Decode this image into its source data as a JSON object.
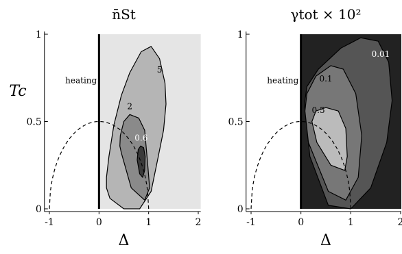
{
  "chart_data": [
    {
      "type": "contour",
      "title": "n̄St",
      "xlabel": "Δ",
      "ylabel": "Tc",
      "xlim": [
        -1.1,
        2.05
      ],
      "ylim": [
        0,
        1.0
      ],
      "xticks": [
        "-1",
        "0",
        "1",
        "2"
      ],
      "yticks": [
        "0",
        "0.5",
        "1"
      ],
      "region_label": "heating",
      "background_color": "#e5e5e5",
      "contours": [
        {
          "level": "5",
          "fill": "#b5b5b5",
          "points": [
            [
              0.15,
              0.12
            ],
            [
              0.22,
              0.06
            ],
            [
              0.5,
              0.0
            ],
            [
              0.82,
              0.0
            ],
            [
              1.05,
              0.1
            ],
            [
              1.18,
              0.28
            ],
            [
              1.3,
              0.45
            ],
            [
              1.35,
              0.6
            ],
            [
              1.33,
              0.72
            ],
            [
              1.22,
              0.86
            ],
            [
              1.05,
              0.93
            ],
            [
              0.85,
              0.9
            ],
            [
              0.62,
              0.78
            ],
            [
              0.45,
              0.65
            ],
            [
              0.3,
              0.48
            ],
            [
              0.2,
              0.3
            ],
            [
              0.15,
              0.18
            ]
          ]
        },
        {
          "level": "2",
          "fill": "#8a8a8a",
          "points": [
            [
              0.45,
              0.32
            ],
            [
              0.65,
              0.12
            ],
            [
              0.92,
              0.05
            ],
            [
              1.02,
              0.12
            ],
            [
              0.98,
              0.26
            ],
            [
              0.92,
              0.45
            ],
            [
              0.8,
              0.52
            ],
            [
              0.62,
              0.54
            ],
            [
              0.5,
              0.5
            ],
            [
              0.43,
              0.42
            ],
            [
              0.42,
              0.36
            ]
          ]
        },
        {
          "level": "0.6",
          "fill": "#3a3a3a",
          "points": [
            [
              0.77,
              0.28
            ],
            [
              0.82,
              0.2
            ],
            [
              0.88,
              0.18
            ],
            [
              0.92,
              0.22
            ],
            [
              0.93,
              0.3
            ],
            [
              0.9,
              0.35
            ],
            [
              0.84,
              0.36
            ],
            [
              0.79,
              0.34
            ]
          ]
        }
      ],
      "contour_labels": [
        {
          "text": "5",
          "x": 1.22,
          "y": 0.78,
          "color": "#000000"
        },
        {
          "text": "2",
          "x": 0.62,
          "y": 0.57,
          "color": "#000000"
        },
        {
          "text": "0.6",
          "x": 0.85,
          "y": 0.39,
          "color": "#ffffff"
        }
      ],
      "dashed_curve": "Tc = 0.5·sqrt(1 − Δ²)",
      "boundary_line_x": 0
    },
    {
      "type": "contour",
      "title": "γtot × 10²",
      "xlabel": "Δ",
      "ylabel": "",
      "xlim": [
        -1.1,
        2.05
      ],
      "ylim": [
        0,
        1.0
      ],
      "xticks": [
        "-1",
        "0",
        "1",
        "2"
      ],
      "yticks": [
        "0",
        "0.5",
        "1"
      ],
      "region_label": "heating",
      "background_color": "#222222",
      "contours": [
        {
          "level": "0.01",
          "fill": "#555555",
          "points": [
            [
              0.07,
              0.6
            ],
            [
              0.18,
              0.3
            ],
            [
              0.55,
              0.02
            ],
            [
              1.0,
              0.0
            ],
            [
              1.4,
              0.12
            ],
            [
              1.72,
              0.38
            ],
            [
              1.83,
              0.62
            ],
            [
              1.76,
              0.84
            ],
            [
              1.55,
              0.96
            ],
            [
              1.2,
              0.98
            ],
            [
              0.8,
              0.92
            ],
            [
              0.35,
              0.8
            ],
            [
              0.12,
              0.7
            ]
          ]
        },
        {
          "level": "0.1",
          "fill": "#777777",
          "points": [
            [
              0.08,
              0.56
            ],
            [
              0.15,
              0.38
            ],
            [
              0.55,
              0.1
            ],
            [
              0.9,
              0.05
            ],
            [
              1.15,
              0.18
            ],
            [
              1.22,
              0.42
            ],
            [
              1.1,
              0.66
            ],
            [
              0.85,
              0.8
            ],
            [
              0.6,
              0.82
            ],
            [
              0.3,
              0.76
            ],
            [
              0.12,
              0.66
            ]
          ]
        },
        {
          "level": "0.5",
          "fill": "#bbbbbb",
          "points": [
            [
              0.22,
              0.5
            ],
            [
              0.32,
              0.38
            ],
            [
              0.6,
              0.25
            ],
            [
              0.88,
              0.22
            ],
            [
              0.93,
              0.3
            ],
            [
              0.9,
              0.46
            ],
            [
              0.75,
              0.56
            ],
            [
              0.5,
              0.58
            ],
            [
              0.3,
              0.56
            ]
          ]
        }
      ],
      "contour_labels": [
        {
          "text": "0.01",
          "x": 1.6,
          "y": 0.87,
          "color": "#ffffff"
        },
        {
          "text": "0.1",
          "x": 0.5,
          "y": 0.73,
          "color": "#000000"
        },
        {
          "text": "0.5",
          "x": 0.35,
          "y": 0.55,
          "color": "#000000"
        }
      ],
      "dashed_curve": "Tc = 0.5·sqrt(1 − Δ²)",
      "boundary_line_x": 0
    }
  ]
}
